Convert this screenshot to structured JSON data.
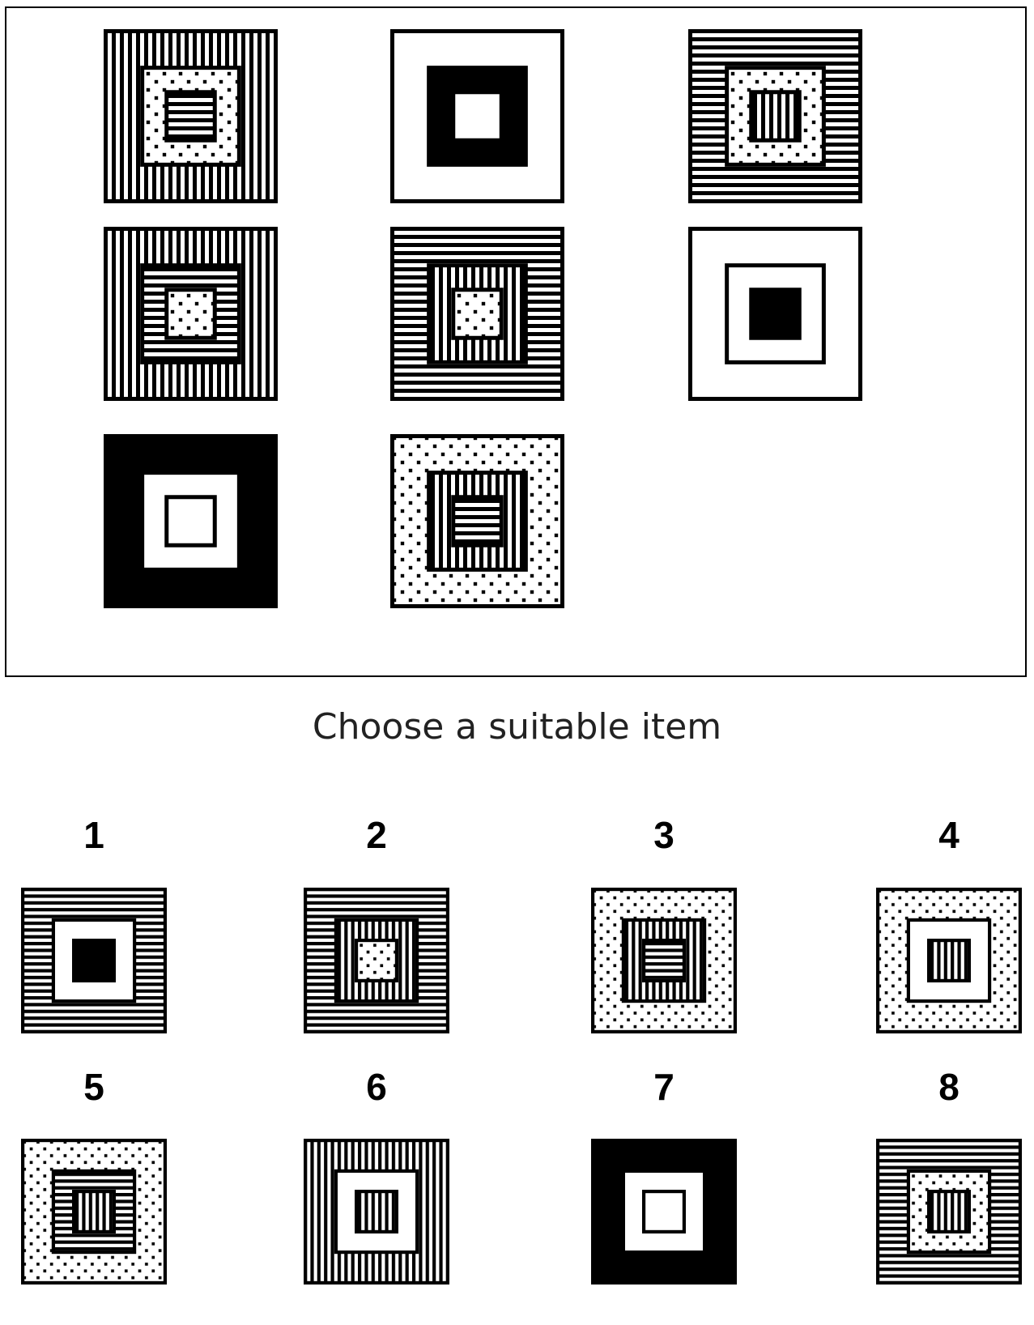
{
  "prompt": "Choose a suitable item",
  "colors": {
    "ink": "#000000",
    "paper": "#ffffff"
  },
  "matrix": [
    [
      "vertical-stripes",
      "dots",
      "horizontal-stripes"
    ],
    [
      "white",
      "black",
      "white"
    ],
    [
      "horizontal-stripes",
      "dots",
      "vertical-stripes"
    ],
    [
      "vertical-stripes",
      "horizontal-stripes",
      "dots"
    ],
    [
      "horizontal-stripes",
      "vertical-stripes",
      "dots"
    ],
    [
      "white",
      "white",
      "black"
    ],
    [
      "black",
      "white",
      "white"
    ],
    [
      "dots",
      "vertical-stripes",
      "horizontal-stripes"
    ],
    null
  ],
  "options": [
    {
      "label": "1",
      "layers": [
        "horizontal-stripes",
        "white",
        "black"
      ]
    },
    {
      "label": "2",
      "layers": [
        "horizontal-stripes",
        "vertical-stripes",
        "dots"
      ]
    },
    {
      "label": "3",
      "layers": [
        "dots",
        "vertical-stripes",
        "horizontal-stripes"
      ]
    },
    {
      "label": "4",
      "layers": [
        "dots",
        "white",
        "vertical-stripes"
      ]
    },
    {
      "label": "5",
      "layers": [
        "dots",
        "horizontal-stripes",
        "vertical-stripes"
      ]
    },
    {
      "label": "6",
      "layers": [
        "vertical-stripes",
        "white",
        "vertical-stripes"
      ]
    },
    {
      "label": "7",
      "layers": [
        "black",
        "white",
        "white"
      ]
    },
    {
      "label": "8",
      "layers": [
        "horizontal-stripes",
        "dots",
        "vertical-stripes"
      ]
    }
  ]
}
